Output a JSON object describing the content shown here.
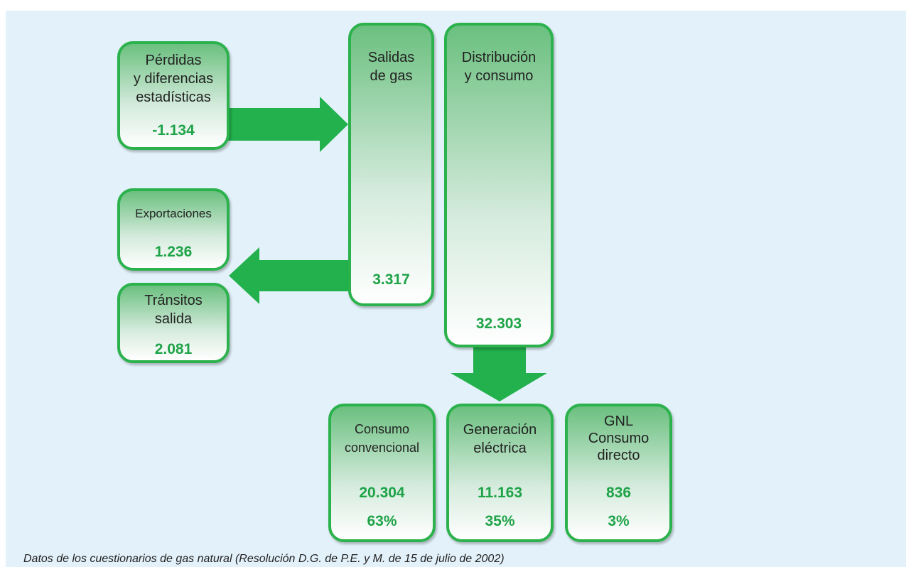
{
  "boxes": [
    {
      "lines": [
        "Pérdidas",
        "y diferencias",
        "estadísticas"
      ],
      "values": [
        "-1.134"
      ]
    },
    {
      "lines": [
        "Exportaciones"
      ],
      "values": [
        "1.236"
      ]
    },
    {
      "lines": [
        "Tránsitos",
        "salida"
      ],
      "values": [
        "2.081"
      ]
    },
    {
      "lines": [
        "Salidas",
        "de gas"
      ],
      "values": [
        "3.317"
      ]
    },
    {
      "lines": [
        "Distribución",
        "y consumo"
      ],
      "values": [
        "32.303"
      ]
    },
    {
      "lines": [
        "Consumo",
        "convencional"
      ],
      "values": [
        "20.304",
        "63%"
      ]
    },
    {
      "lines": [
        "Generación",
        "eléctrica"
      ],
      "values": [
        "11.163",
        "35%"
      ]
    },
    {
      "lines": [
        "GNL",
        "Consumo",
        "directo"
      ],
      "values": [
        "836",
        "3%"
      ]
    }
  ],
  "footnote": "Datos de los cuestionarios de gas natural (Resolución D.G. de P.E. y M. de 15 de julio de 2002)"
}
